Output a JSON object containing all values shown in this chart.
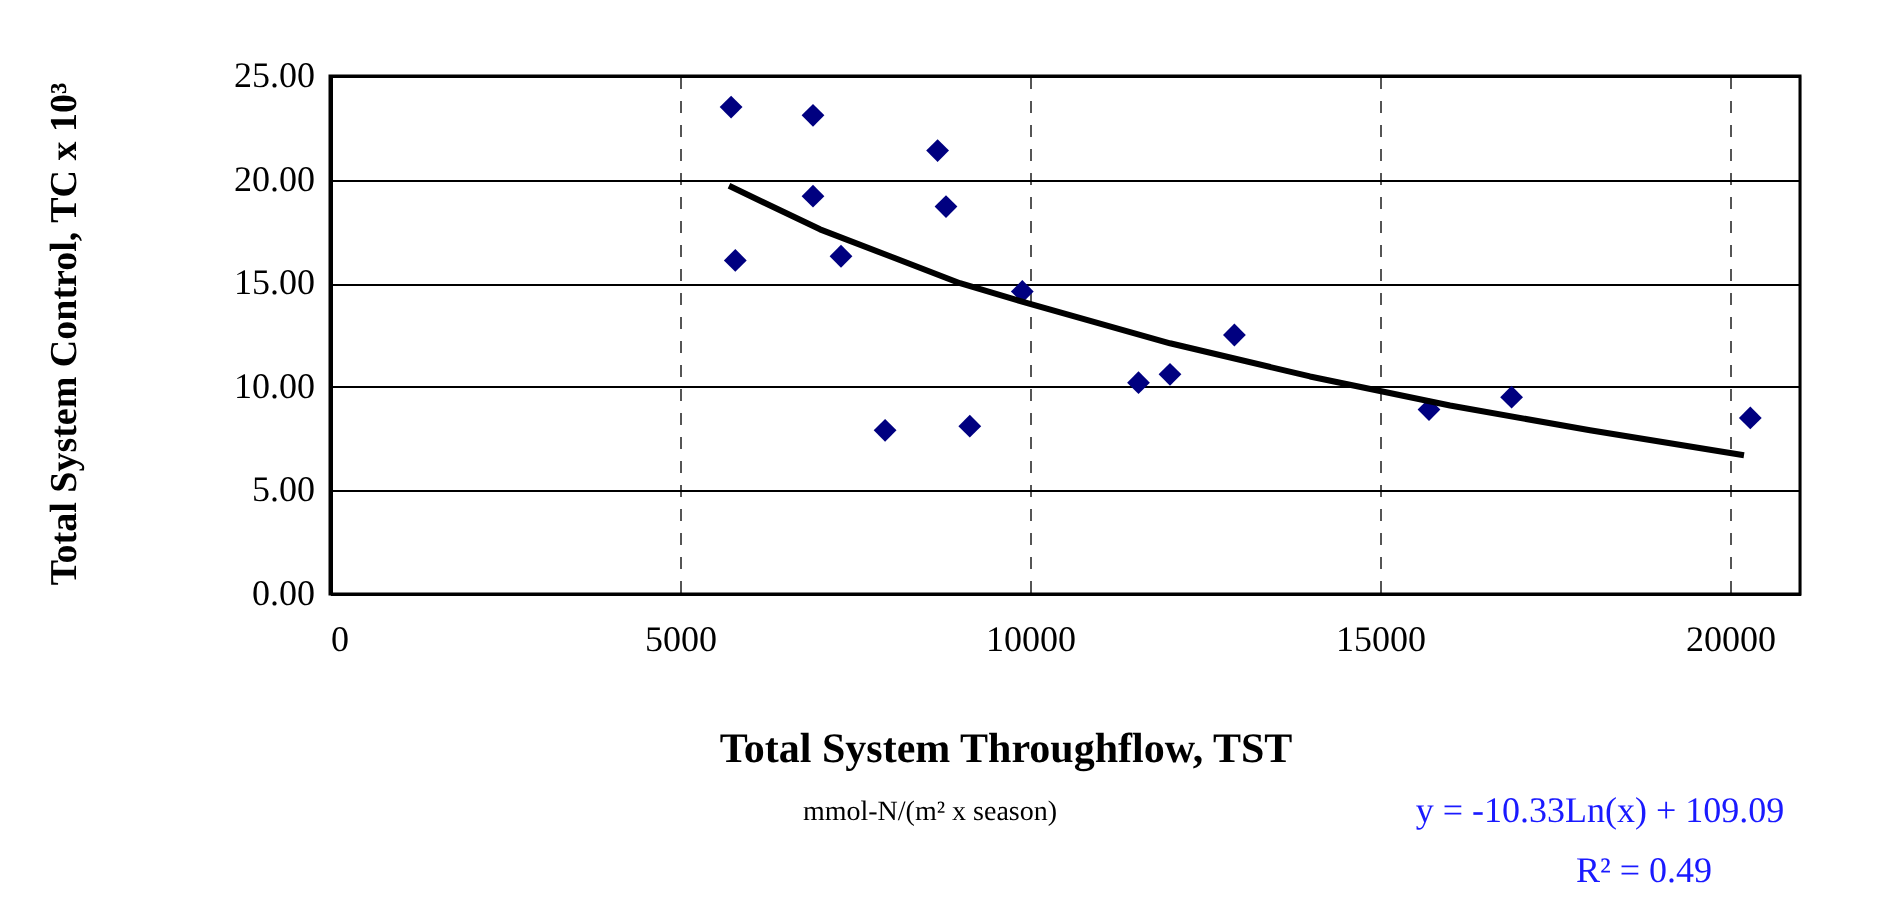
{
  "chart_data": {
    "type": "scatter",
    "xlabel": "Total System Throughflow, TST",
    "ylabel": "Total System Control, TC  x 10³",
    "annotations": [
      "mmol-N/(m² x season)",
      "y = -10.33Ln(x) + 109.09",
      "R² = 0.49"
    ],
    "series": [
      {
        "type": "scatter",
        "color": "#000080",
        "marker": "diamond",
        "x": [
          5730,
          5790,
          6900,
          6900,
          7300,
          7930,
          8680,
          8800,
          9140,
          9890,
          11550,
          12000,
          12920,
          15700,
          16880,
          20290
        ],
        "values": [
          23.5,
          16.1,
          23.1,
          19.2,
          16.3,
          7.9,
          21.4,
          18.7,
          8.1,
          14.6,
          10.2,
          10.6,
          12.5,
          8.9,
          9.5,
          8.5
        ]
      },
      {
        "type": "line",
        "color": "#000000",
        "x": [
          5700,
          7000,
          8000,
          9000,
          10000,
          12000,
          14000,
          16000,
          18000,
          20200
        ],
        "values": [
          19.7,
          17.6,
          16.3,
          15.0,
          14.0,
          12.1,
          10.5,
          9.1,
          7.9,
          6.7
        ]
      }
    ],
    "xlim": [
      0,
      21000
    ],
    "xticks": [
      0,
      5000,
      10000,
      15000,
      20000
    ],
    "line_style": "solid",
    "ylim": [
      0,
      25
    ],
    "yticks": [
      {
        "value": 0,
        "label": "0.00"
      },
      {
        "value": 5,
        "label": "5.00"
      },
      {
        "value": 10,
        "label": "10.00"
      },
      {
        "value": 15,
        "label": "15.00"
      },
      {
        "value": 20,
        "label": "20.00"
      },
      {
        "value": 25,
        "label": "25.00"
      }
    ],
    "grid": true
  }
}
